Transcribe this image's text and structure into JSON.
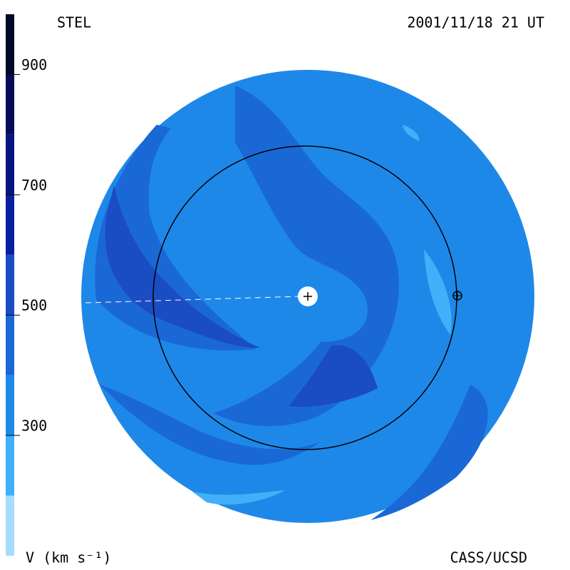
{
  "chart_data": {
    "type": "colorbar",
    "title": "STEL",
    "subtitle": "2001/11/18 21 UT",
    "axis_label": "V (km s⁻¹)",
    "credit": "CASS/UCSD",
    "ylim": [
      100,
      1000
    ],
    "yticks": [
      300,
      500,
      700,
      900
    ],
    "edges": [
      100,
      200,
      300,
      400,
      500,
      600,
      700,
      800,
      900,
      1000
    ],
    "colors": [
      "#a8dcff",
      "#40b0f8",
      "#1e88e8",
      "#1a68d6",
      "#1a4cc4",
      "#0a20a0",
      "#061680",
      "#040e58",
      "#020828"
    ]
  }
}
